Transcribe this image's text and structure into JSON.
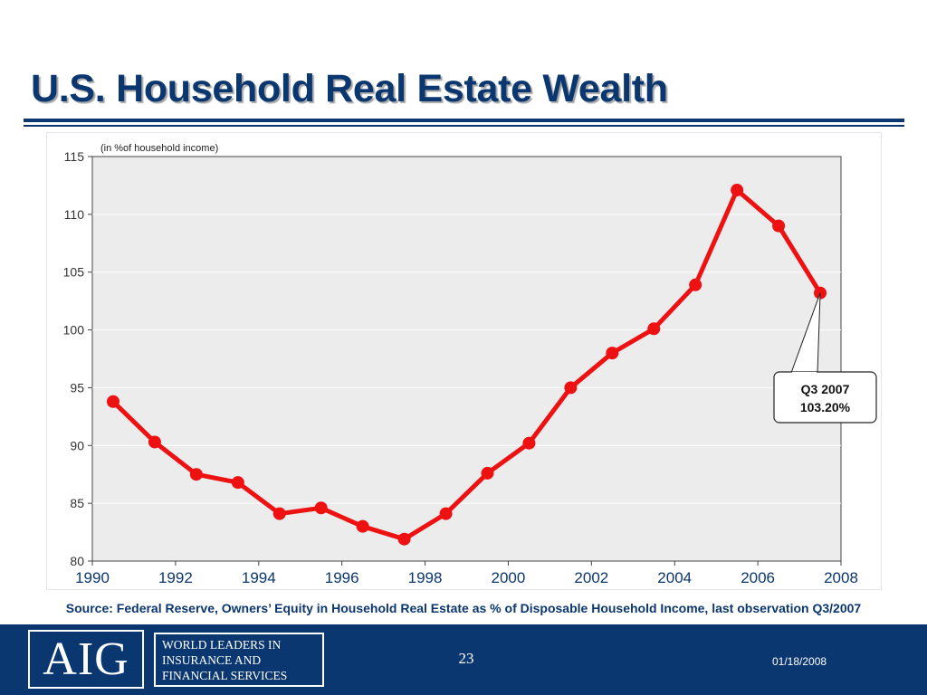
{
  "slide": {
    "title": "U.S. Household Real Estate Wealth",
    "source_note": "Source: Federal Reserve, Owners’ Equity in Household Real Estate as % of Disposable Household Income, last observation Q3/2007"
  },
  "footer": {
    "logo_text": "AIG",
    "tagline_lines": [
      "WORLD LEADERS IN",
      "INSURANCE AND",
      "FINANCIAL SERVICES"
    ],
    "page_number": "23",
    "date": "01/18/2008"
  },
  "colors": {
    "title": "#0b3770",
    "footer_background": "#0b3770",
    "series_line": "#ee1111",
    "plot_background": "#ececec"
  },
  "chart_data": {
    "type": "line",
    "ylabel": "(in %of household income)",
    "xlim": [
      1990,
      2008
    ],
    "ylim": [
      80,
      115
    ],
    "x_ticks": [
      1990,
      1992,
      1994,
      1996,
      1998,
      2000,
      2002,
      2004,
      2006,
      2008
    ],
    "y_ticks": [
      80,
      85,
      90,
      95,
      100,
      105,
      110,
      115
    ],
    "grid": "horizontal",
    "series": [
      {
        "x": [
          1990.5,
          1991.5,
          1992.5,
          1993.5,
          1994.5,
          1995.5,
          1996.5,
          1997.5,
          1998.5,
          1999.5,
          2000.5,
          2001.5,
          2002.5,
          2003.5,
          2004.5,
          2005.5,
          2006.5,
          2007.5
        ],
        "values": [
          93.8,
          90.3,
          87.5,
          86.8,
          84.1,
          84.6,
          83.0,
          81.9,
          84.1,
          87.6,
          90.2,
          95.0,
          98.0,
          100.1,
          103.9,
          112.1,
          109.0,
          103.2
        ]
      }
    ],
    "annotation": {
      "lines": [
        "Q3 2007",
        "103.20%"
      ],
      "x": 2007.5,
      "y": 103.2
    }
  }
}
